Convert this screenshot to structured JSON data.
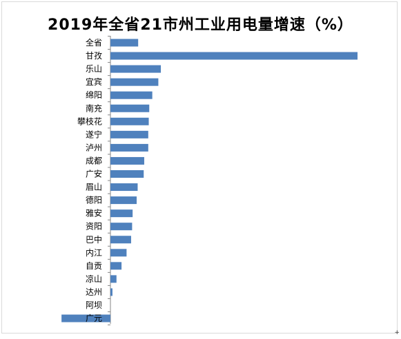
{
  "chart_data": {
    "type": "bar",
    "orientation": "horizontal",
    "title": "2019年全省21市州工业用电量增速（%）",
    "xlabel": "",
    "ylabel": "",
    "grid": false,
    "legend": "none",
    "bar_color": "#4f81bd",
    "xlim": [
      -10,
      51
    ],
    "categories": [
      "全省",
      "甘孜",
      "乐山",
      "宜宾",
      "绵阳",
      "南充",
      "攀枝花",
      "遂宁",
      "泸州",
      "成都",
      "广安",
      "眉山",
      "德阳",
      "雅安",
      "资阳",
      "巴中",
      "内江",
      "自贡",
      "凉山",
      "达州",
      "阿坝",
      "广元"
    ],
    "values": [
      5.5,
      49.0,
      10.0,
      9.5,
      8.3,
      7.7,
      7.6,
      7.5,
      7.5,
      6.7,
      6.6,
      5.4,
      5.2,
      4.4,
      4.3,
      4.1,
      3.2,
      2.2,
      1.2,
      0.4,
      0.0,
      -9.7
    ]
  },
  "page": {
    "corner_mark": "+"
  }
}
